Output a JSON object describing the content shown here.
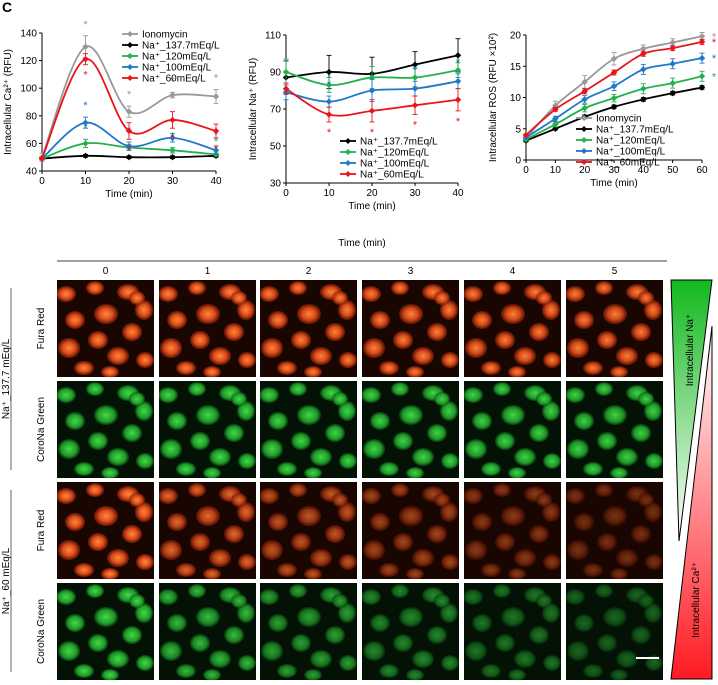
{
  "panel_label": "C",
  "colors": {
    "ionomycin": "#999999",
    "na137": "#000000",
    "na120": "#22b14c",
    "na100": "#1f78c8",
    "na60": "#e8151b",
    "fura": "#e0521a",
    "corona": "#2ec03a"
  },
  "chart_data": [
    {
      "type": "line",
      "ylabel": "Intracellular Ca²⁺ (RFU)",
      "xlabel": "Time (min)",
      "x": [
        0,
        10,
        20,
        30,
        40
      ],
      "xticks": [
        "0",
        "10",
        "20",
        "30",
        "40"
      ],
      "ylim": [
        40,
        140
      ],
      "yticks": [
        "40",
        "60",
        "80",
        "100",
        "120",
        "140"
      ],
      "legend_position": "top-right",
      "series": [
        {
          "name": "Ionomycin",
          "key": "ionomycin",
          "values": [
            50,
            130,
            83,
            95,
            94
          ],
          "errors": [
            3,
            8,
            4,
            2,
            5
          ],
          "signif": [
            false,
            true,
            true,
            true,
            true
          ]
        },
        {
          "name": "Na⁺_137.7mEq/L",
          "key": "na137",
          "values": [
            49,
            51,
            50,
            50,
            51
          ],
          "errors": [
            1,
            1,
            1,
            1,
            1
          ],
          "signif": [
            false,
            false,
            false,
            false,
            false
          ]
        },
        {
          "name": "Na⁺_120mEq/L",
          "key": "na120",
          "values": [
            49,
            60,
            57,
            55,
            52
          ],
          "errors": [
            1,
            3,
            2,
            2,
            1
          ],
          "signif": [
            false,
            true,
            true,
            true,
            true
          ]
        },
        {
          "name": "Na⁺_100mEq/L",
          "key": "na100",
          "values": [
            49,
            75,
            58,
            64,
            55
          ],
          "errors": [
            1,
            4,
            3,
            3,
            3
          ],
          "signif": [
            false,
            true,
            true,
            true,
            true
          ]
        },
        {
          "name": "Na⁺_60mEq/L",
          "key": "na60",
          "values": [
            49,
            121,
            69,
            77,
            69
          ],
          "errors": [
            1,
            4,
            6,
            6,
            5
          ],
          "signif": [
            false,
            true,
            true,
            true,
            true
          ]
        }
      ],
      "signif_marker": "*"
    },
    {
      "type": "line",
      "ylabel": "Intracellular Na⁺ (RFU)",
      "xlabel": "Time (min)",
      "x": [
        0,
        10,
        20,
        30,
        40
      ],
      "xticks": [
        "0",
        "10",
        "20",
        "30",
        "40"
      ],
      "ylim": [
        30,
        110
      ],
      "yticks": [
        "30",
        "50",
        "70",
        "90",
        "110"
      ],
      "legend_position": "bottom-right",
      "series": [
        {
          "name": "Na⁺_137.7mEq/L",
          "key": "na137",
          "values": [
            87,
            90,
            89,
            94,
            99
          ],
          "errors": [
            9,
            9,
            9,
            7,
            9
          ],
          "signif": [
            false,
            false,
            false,
            false,
            false
          ]
        },
        {
          "name": "Na⁺_120mEq/L",
          "key": "na120",
          "values": [
            90,
            83,
            87,
            87,
            91
          ],
          "errors": [
            7,
            4,
            6,
            5,
            4
          ],
          "signif": [
            false,
            false,
            false,
            false,
            false
          ]
        },
        {
          "name": "Na⁺_100mEq/L",
          "key": "na100",
          "values": [
            79,
            74,
            80,
            81,
            85
          ],
          "errors": [
            4,
            3,
            6,
            4,
            4
          ],
          "signif": [
            false,
            true,
            false,
            true,
            true
          ]
        },
        {
          "name": "Na⁺_60mEq/L",
          "key": "na60",
          "values": [
            81,
            67,
            69,
            72,
            75
          ],
          "errors": [
            3,
            4,
            6,
            5,
            6
          ],
          "signif": [
            false,
            true,
            true,
            true,
            true
          ]
        }
      ],
      "signif_marker": "*"
    },
    {
      "type": "line",
      "ylabel": "Intracellular ROS (RFU ×10²)",
      "xlabel": "Time (min)",
      "x": [
        0,
        10,
        20,
        30,
        40,
        50,
        60
      ],
      "xticks": [
        "0",
        "10",
        "20",
        "30",
        "40",
        "50",
        "60"
      ],
      "ylim": [
        0,
        20
      ],
      "yticks": [
        "0",
        "5",
        "10",
        "15",
        "20"
      ],
      "legend_position": "bottom-right",
      "series": [
        {
          "name": "Ionomycin",
          "key": "ionomycin",
          "values": [
            3.5,
            8.7,
            12.5,
            16.2,
            17.8,
            18.8,
            19.8
          ],
          "errors": [
            0.3,
            0.7,
            1.0,
            1.0,
            0.6,
            0.6,
            0.6
          ],
          "signif": [
            false,
            false,
            false,
            false,
            false,
            false,
            true
          ]
        },
        {
          "name": "Na⁺_137.7mEq/L",
          "key": "na137",
          "values": [
            3.1,
            5.0,
            6.9,
            8.5,
            9.7,
            10.7,
            11.6
          ],
          "errors": [
            0.2,
            0.2,
            0.3,
            0.3,
            0.3,
            0.3,
            0.3
          ],
          "signif": [
            false,
            false,
            false,
            false,
            false,
            false,
            false
          ]
        },
        {
          "name": "Na⁺_120mEq/L",
          "key": "na120",
          "values": [
            3.3,
            5.7,
            8.3,
            9.9,
            11.4,
            12.3,
            13.4
          ],
          "errors": [
            0.2,
            0.4,
            0.6,
            0.6,
            0.8,
            0.8,
            0.8
          ],
          "signif": [
            false,
            false,
            false,
            false,
            false,
            false,
            true
          ]
        },
        {
          "name": "Na⁺_100mEq/L",
          "key": "na100",
          "values": [
            3.6,
            6.6,
            9.7,
            11.8,
            14.5,
            15.4,
            16.3
          ],
          "errors": [
            0.2,
            0.4,
            0.6,
            0.7,
            0.8,
            0.8,
            0.8
          ],
          "signif": [
            false,
            false,
            false,
            false,
            false,
            false,
            true
          ]
        },
        {
          "name": "Na⁺_60mEq/L",
          "key": "na60",
          "values": [
            4.0,
            8.1,
            11.0,
            14.0,
            17.0,
            17.9,
            18.9
          ],
          "errors": [
            0.2,
            0.3,
            0.4,
            0.4,
            0.4,
            0.4,
            0.4
          ],
          "signif": [
            false,
            false,
            false,
            false,
            false,
            false,
            true
          ]
        }
      ],
      "signif_marker": "*"
    }
  ],
  "microscopy": {
    "time_header": "Time (min)",
    "timepoints": [
      "0",
      "1",
      "2",
      "3",
      "4",
      "5"
    ],
    "groups": [
      {
        "condition": "Na⁺_137.7 mEq/L",
        "rows": [
          {
            "channel": "Fura Red",
            "dye": "fura",
            "intensity": [
              1.0,
              1.0,
              0.98,
              0.97,
              0.96,
              0.95
            ]
          },
          {
            "channel": "CoroNa Green",
            "dye": "corona",
            "intensity": [
              1.0,
              1.0,
              0.99,
              0.98,
              0.98,
              0.97
            ]
          }
        ]
      },
      {
        "condition": "Na⁺_60 mEq/L",
        "rows": [
          {
            "channel": "Fura Red",
            "dye": "fura",
            "intensity": [
              1.0,
              0.82,
              0.68,
              0.55,
              0.45,
              0.38
            ]
          },
          {
            "channel": "CoroNa Green",
            "dye": "corona",
            "intensity": [
              1.0,
              0.85,
              0.72,
              0.6,
              0.5,
              0.42
            ]
          }
        ]
      }
    ],
    "gradient_labels": {
      "sodium": "Intracellular Na⁺",
      "calcium": "Intracellular Ca²⁺"
    }
  }
}
